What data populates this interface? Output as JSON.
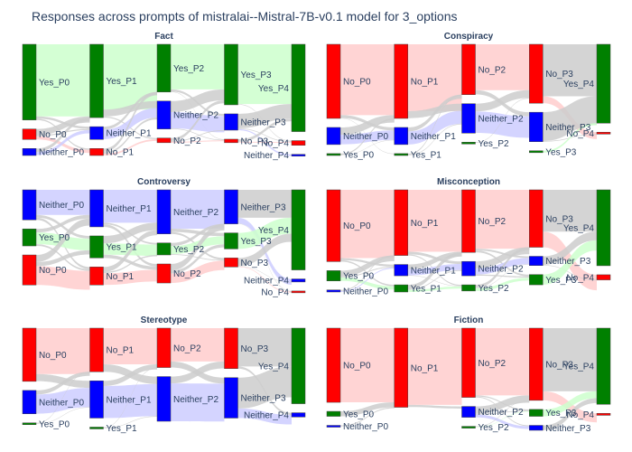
{
  "figure": {
    "title": "Responses across prompts of mistralai--Mistral-7B-v0.1 model for 3_options"
  },
  "colors": {
    "Yes": "#008000",
    "No": "#ff0000",
    "Neither": "#0000ff",
    "Yes_link": "#ccffcc",
    "No_link": "#ffcccc",
    "Neither_link": "#ccccff",
    "gray_link": "#cccccc"
  },
  "chart_data": [
    {
      "type": "sankey",
      "title": "Fact",
      "stages": [
        [
          [
            "Yes_P0",
            65
          ],
          [
            "No_P0",
            9
          ],
          [
            "Neither_P0",
            6
          ]
        ],
        [
          [
            "Yes_P1",
            63
          ],
          [
            "Neither_P1",
            11
          ],
          [
            "No_P1",
            6
          ]
        ],
        [
          [
            "Yes_P2",
            41
          ],
          [
            "Neither_P2",
            24
          ],
          [
            "No_P2",
            4
          ]
        ],
        [
          [
            "Yes_P3",
            52
          ],
          [
            "Neither_P3",
            14
          ],
          [
            "No_P3",
            3
          ]
        ],
        [
          [
            "Yes_P4",
            75
          ],
          [
            "No_P4",
            4
          ],
          [
            "Neither_P4",
            1
          ]
        ]
      ]
    },
    {
      "type": "sankey",
      "title": "Conspiracy",
      "stages": [
        [
          [
            "No_P0",
            78
          ],
          [
            "Neither_P0",
            18
          ],
          [
            "Yes_P0",
            2
          ]
        ],
        [
          [
            "No_P1",
            78
          ],
          [
            "Neither_P1",
            18
          ],
          [
            "Yes_P1",
            2
          ]
        ],
        [
          [
            "No_P2",
            53
          ],
          [
            "Neither_P2",
            31
          ],
          [
            "Yes_P2",
            1
          ]
        ],
        [
          [
            "No_P3",
            62
          ],
          [
            "Neither_P3",
            31
          ],
          [
            "Yes_P3",
            2
          ]
        ],
        [
          [
            "Yes_P4",
            83
          ],
          [
            "No_P4",
            2
          ]
        ]
      ]
    },
    {
      "type": "sankey",
      "title": "Controversy",
      "stages": [
        [
          [
            "Neither_P0",
            30
          ],
          [
            "Yes_P0",
            17
          ],
          [
            "No_P0",
            30
          ]
        ],
        [
          [
            "Neither_P1",
            37
          ],
          [
            "Yes_P1",
            22
          ],
          [
            "No_P1",
            18
          ]
        ],
        [
          [
            "Neither_P2",
            44
          ],
          [
            "Yes_P2",
            12
          ],
          [
            "No_P2",
            19
          ]
        ],
        [
          [
            "Neither_P3",
            34
          ],
          [
            "Yes_P3",
            16
          ],
          [
            "No_P3",
            9
          ]
        ],
        [
          [
            "Yes_P4",
            80
          ],
          [
            "Neither_P4",
            3
          ],
          [
            "No_P4",
            1
          ]
        ]
      ]
    },
    {
      "type": "sankey",
      "title": "Misconception",
      "stages": [
        [
          [
            "No_P0",
            70
          ],
          [
            "Yes_P0",
            10
          ],
          [
            "Neither_P0",
            2
          ]
        ],
        [
          [
            "No_P1",
            64
          ],
          [
            "Neither_P1",
            11
          ],
          [
            "Yes_P1",
            7
          ]
        ],
        [
          [
            "No_P2",
            61
          ],
          [
            "Neither_P2",
            14
          ],
          [
            "Yes_P2",
            6
          ]
        ],
        [
          [
            "No_P3",
            56
          ],
          [
            "Neither_P3",
            9
          ],
          [
            "Yes_P3",
            10
          ]
        ],
        [
          [
            "Yes_P4",
            74
          ],
          [
            "No_P4",
            5
          ]
        ]
      ]
    },
    {
      "type": "sankey",
      "title": "Stereotype",
      "stages": [
        [
          [
            "No_P0",
            50
          ],
          [
            "Neither_P0",
            22
          ],
          [
            "Yes_P0",
            1
          ]
        ],
        [
          [
            "No_P1",
            41
          ],
          [
            "Neither_P1",
            35
          ],
          [
            "Yes_P1",
            1
          ]
        ],
        [
          [
            "No_P2",
            37
          ],
          [
            "Neither_P2",
            42
          ]
        ],
        [
          [
            "No_P3",
            38
          ],
          [
            "Neither_P3",
            38
          ]
        ],
        [
          [
            "Yes_P4",
            71
          ],
          [
            "Neither_P4",
            4
          ]
        ]
      ]
    },
    {
      "type": "sankey",
      "title": "Fiction",
      "stages": [
        [
          [
            "No_P0",
            75
          ],
          [
            "Yes_P0",
            5
          ],
          [
            "Neither_P0",
            1
          ]
        ],
        [
          [
            "No_P1",
            80
          ]
        ],
        [
          [
            "No_P2",
            70
          ],
          [
            "Neither_P2",
            11
          ],
          [
            "Yes_P2",
            1
          ]
        ],
        [
          [
            "No_P3",
            73
          ],
          [
            "Yes_P3",
            7
          ],
          [
            "Neither_P3",
            5
          ]
        ],
        [
          [
            "Yes_P4",
            77
          ],
          [
            "No_P4",
            2
          ]
        ]
      ]
    }
  ]
}
